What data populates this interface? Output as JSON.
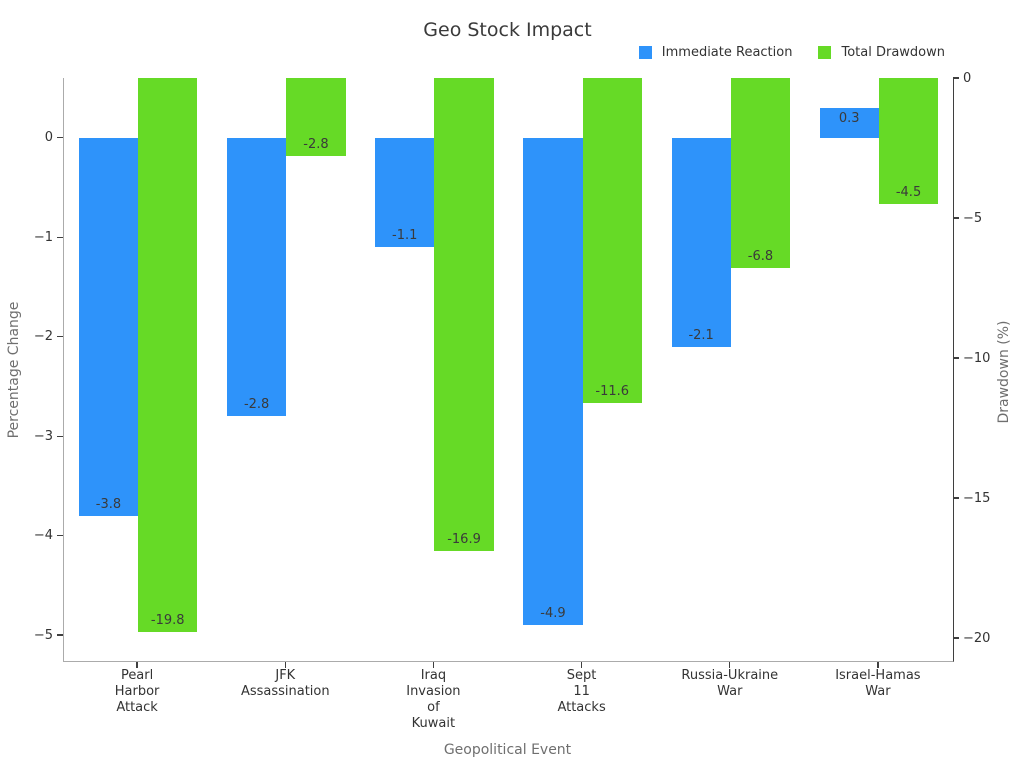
{
  "chart_data": {
    "type": "bar",
    "title": "Geo Stock Impact",
    "xlabel": "Geopolitical Event",
    "grid": false,
    "bar_labels": true,
    "legend": {
      "position": "top-right-outside"
    },
    "categories": [
      [
        "Pearl",
        "Harbor",
        "Attack"
      ],
      [
        "JFK",
        "Assassination"
      ],
      [
        "Iraq",
        "Invasion",
        "of",
        "Kuwait"
      ],
      [
        "Sept",
        "11",
        "Attacks"
      ],
      [
        "Russia-Ukraine",
        "War"
      ],
      [
        "Israel-Hamas",
        "War"
      ]
    ],
    "series": [
      {
        "name": "Immediate Reaction",
        "axis": "left",
        "color": "#2e93fa",
        "values": [
          -3.8,
          -2.8,
          -1.1,
          -4.9,
          -2.1,
          0.3
        ]
      },
      {
        "name": "Total Drawdown",
        "axis": "right",
        "color": "#66da26",
        "values": [
          -19.8,
          -2.8,
          -16.9,
          -11.6,
          -6.8,
          -4.5
        ]
      }
    ],
    "axes": {
      "left": {
        "label": "Percentage Change",
        "ticks": [
          0,
          -1,
          -2,
          -3,
          -4,
          -5
        ],
        "ylim": [
          -5.26,
          0.6
        ]
      },
      "right": {
        "label": "Drawdown (%)",
        "ticks": [
          0,
          -5,
          -10,
          -15,
          -20
        ],
        "ylim": [
          -20.82,
          0
        ]
      }
    }
  }
}
